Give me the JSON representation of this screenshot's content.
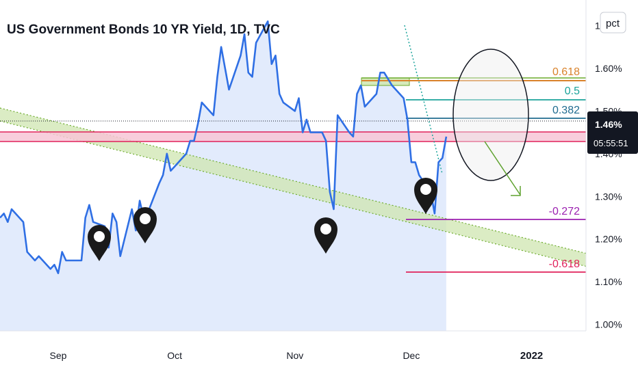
{
  "header": {
    "title": "US Government Bonds 10 YR Yield, 1D, TVC",
    "scale_button": "pct"
  },
  "price_label": {
    "value": "1.46%",
    "countdown": "05:55:51"
  },
  "colors": {
    "line": "#2f6fe4",
    "area": "#dde7fb",
    "pink_band": "#f7c6d6",
    "pink_edge": "#e0205a",
    "channel": "#cfe6b0",
    "channel_edge": "#6aaa2a",
    "fib_0618_up": "#d9822b",
    "fib_05": "#1aa39a",
    "fib_0382": "#1f6b8f",
    "fib_m0272": "#9b1fb0",
    "fib_m0618": "#e0205a",
    "price_bg": "#131722",
    "arrow": "#5ea22f",
    "marker": "#1a1a1a"
  },
  "chart_data": {
    "type": "area",
    "title": "US Government Bonds 10 YR Yield, 1D, TVC",
    "ylim": [
      0.985,
      1.76
    ],
    "y_ticks": [
      {
        "value": 1.0,
        "label": "1.00%"
      },
      {
        "value": 1.1,
        "label": "1.10%"
      },
      {
        "value": 1.2,
        "label": "1.20%"
      },
      {
        "value": 1.3,
        "label": "1.30%"
      },
      {
        "value": 1.4,
        "label": "1.40%"
      },
      {
        "value": 1.5,
        "label": "1.50%"
      },
      {
        "value": 1.6,
        "label": "1.60%"
      },
      {
        "value": 1.7,
        "label": "1.7"
      }
    ],
    "x_range": [
      "2021-08-17",
      "2022-01-15"
    ],
    "x_ticks": [
      {
        "date": "2021-09-01",
        "label": "Sep"
      },
      {
        "date": "2021-10-01",
        "label": "Oct"
      },
      {
        "date": "2021-11-01",
        "label": "Nov"
      },
      {
        "date": "2021-12-01",
        "label": "Dec"
      },
      {
        "date": "2022-01-01",
        "label": "2022"
      }
    ],
    "series": [
      {
        "x": [
          "2021-08-17",
          "2021-08-18",
          "2021-08-19",
          "2021-08-20",
          "2021-08-23",
          "2021-08-24",
          "2021-08-25",
          "2021-08-26",
          "2021-08-27",
          "2021-08-30",
          "2021-08-31",
          "2021-09-01",
          "2021-09-02",
          "2021-09-03",
          "2021-09-07",
          "2021-09-08",
          "2021-09-09",
          "2021-09-10",
          "2021-09-13",
          "2021-09-14",
          "2021-09-15",
          "2021-09-16",
          "2021-09-17",
          "2021-09-20",
          "2021-09-21",
          "2021-09-22",
          "2021-09-23",
          "2021-09-24",
          "2021-09-27",
          "2021-09-28",
          "2021-09-29",
          "2021-09-30",
          "2021-10-01",
          "2021-10-04",
          "2021-10-05",
          "2021-10-06",
          "2021-10-07",
          "2021-10-08",
          "2021-10-11",
          "2021-10-12",
          "2021-10-13",
          "2021-10-14",
          "2021-10-15",
          "2021-10-18",
          "2021-10-19",
          "2021-10-20",
          "2021-10-21",
          "2021-10-22",
          "2021-10-25",
          "2021-10-26",
          "2021-10-27",
          "2021-10-28",
          "2021-10-29",
          "2021-11-01",
          "2021-11-02",
          "2021-11-03",
          "2021-11-04",
          "2021-11-05",
          "2021-11-08",
          "2021-11-09",
          "2021-11-10",
          "2021-11-11",
          "2021-11-12",
          "2021-11-15",
          "2021-11-16",
          "2021-11-17",
          "2021-11-18",
          "2021-11-19",
          "2021-11-22",
          "2021-11-23",
          "2021-11-24",
          "2021-11-26",
          "2021-11-29",
          "2021-11-30",
          "2021-12-01",
          "2021-12-02",
          "2021-12-03",
          "2021-12-06",
          "2021-12-07",
          "2021-12-08",
          "2021-12-09",
          "2021-12-10"
        ],
        "values": [
          1.25,
          1.26,
          1.24,
          1.27,
          1.24,
          1.17,
          1.16,
          1.15,
          1.16,
          1.13,
          1.14,
          1.12,
          1.17,
          1.15,
          1.15,
          1.25,
          1.28,
          1.24,
          1.23,
          1.18,
          1.26,
          1.24,
          1.16,
          1.27,
          1.22,
          1.29,
          1.25,
          1.26,
          1.33,
          1.35,
          1.4,
          1.36,
          1.37,
          1.4,
          1.43,
          1.43,
          1.47,
          1.52,
          1.49,
          1.58,
          1.65,
          1.6,
          1.55,
          1.63,
          1.68,
          1.59,
          1.58,
          1.66,
          1.71,
          1.61,
          1.63,
          1.54,
          1.52,
          1.5,
          1.53,
          1.45,
          1.48,
          1.45,
          1.45,
          1.43,
          1.31,
          1.27,
          1.49,
          1.45,
          1.44,
          1.54,
          1.56,
          1.51,
          1.54,
          1.59,
          1.59,
          1.56,
          1.53,
          1.48,
          1.38,
          1.38,
          1.35,
          1.31,
          1.26,
          1.38,
          1.39,
          1.44
        ]
      }
    ],
    "fib_levels": [
      {
        "label": "0.618",
        "value": 1.556
      },
      {
        "label": "0.5",
        "value": 1.515
      },
      {
        "label": "0.382",
        "value": 1.474
      },
      {
        "label": "-0.272",
        "value": 1.24
      },
      {
        "label": "-0.618",
        "value": 1.118
      }
    ],
    "grid": false,
    "legend": "none"
  }
}
